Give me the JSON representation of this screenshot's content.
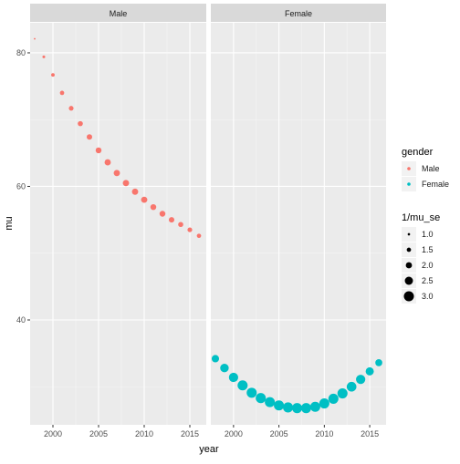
{
  "chart_data": {
    "type": "scatter",
    "xlabel": "year",
    "ylabel": "mu",
    "xlim": [
      1997.5,
      2016.8
    ],
    "ylim": [
      24.3,
      84.5
    ],
    "x_ticks": [
      2000,
      2005,
      2010,
      2015
    ],
    "y_ticks": [
      40,
      60,
      80
    ],
    "panel_bg": "#ebebeb",
    "strip_bg": "#d9d9d9",
    "grid": true,
    "panels": [
      {
        "strip": "Male",
        "color": "#f8766d",
        "x": [
          1998,
          1999,
          2000,
          2001,
          2002,
          2003,
          2004,
          2005,
          2006,
          2007,
          2008,
          2009,
          2010,
          2011,
          2012,
          2013,
          2014,
          2015,
          2016
        ],
        "y": [
          82.1,
          79.4,
          76.7,
          74.0,
          71.7,
          69.4,
          67.4,
          65.4,
          63.6,
          62.0,
          60.5,
          59.2,
          58.0,
          56.9,
          55.9,
          55.0,
          54.3,
          53.5,
          52.6
        ],
        "size": [
          0.8,
          1.1,
          1.3,
          1.5,
          1.6,
          1.7,
          1.8,
          1.9,
          2.0,
          2.0,
          2.0,
          2.0,
          2.0,
          1.9,
          1.9,
          1.8,
          1.7,
          1.6,
          1.5
        ]
      },
      {
        "strip": "Female",
        "color": "#00bfc4",
        "x": [
          1998,
          1999,
          2000,
          2001,
          2002,
          2003,
          2004,
          2005,
          2006,
          2007,
          2008,
          2009,
          2010,
          2011,
          2012,
          2013,
          2014,
          2015,
          2016
        ],
        "y": [
          34.2,
          32.8,
          31.4,
          30.2,
          29.1,
          28.3,
          27.7,
          27.2,
          26.9,
          26.8,
          26.8,
          27.0,
          27.5,
          28.2,
          29.0,
          30.0,
          31.1,
          32.3,
          33.6
        ],
        "size": [
          2.3,
          2.6,
          2.8,
          3.0,
          3.0,
          3.0,
          3.0,
          3.0,
          3.0,
          3.0,
          3.0,
          3.0,
          3.0,
          3.0,
          3.0,
          2.9,
          2.8,
          2.5,
          2.2
        ]
      }
    ],
    "legend": {
      "position": "right",
      "color_title": "gender",
      "color_entries": [
        {
          "label": "Male",
          "color": "#f8766d"
        },
        {
          "label": "Female",
          "color": "#00bfc4"
        }
      ],
      "size_title": "1/mu_se",
      "size_entries": [
        {
          "label": "1.0",
          "value": 1.0
        },
        {
          "label": "1.5",
          "value": 1.5
        },
        {
          "label": "2.0",
          "value": 2.0
        },
        {
          "label": "2.5",
          "value": 2.5
        },
        {
          "label": "3.0",
          "value": 3.0
        }
      ]
    }
  }
}
